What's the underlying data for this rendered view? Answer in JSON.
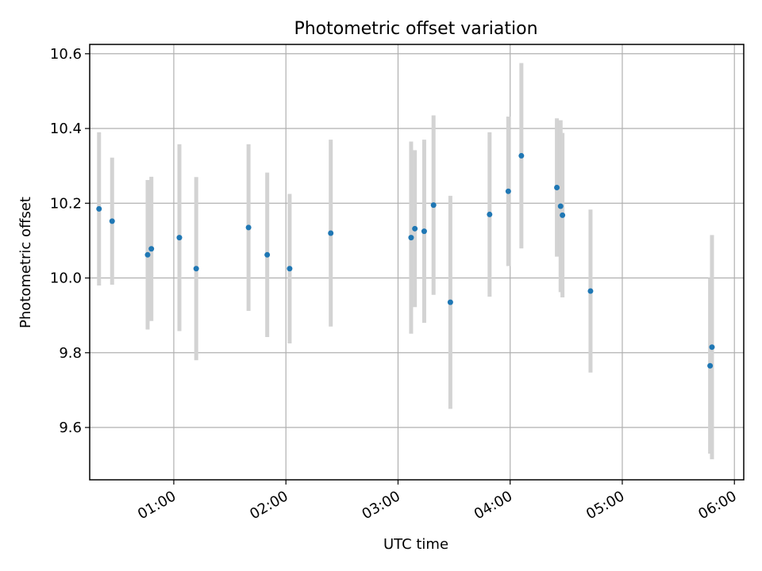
{
  "chart_data": {
    "type": "scatter",
    "title": "Photometric offset variation",
    "xlabel": "UTC time",
    "ylabel": "Photometric offset",
    "x_axis": "time (HH:MM)",
    "xlim": [
      "00:15",
      "06:05"
    ],
    "ylim": [
      9.46,
      10.625
    ],
    "grid": true,
    "x_ticks": [
      "01:00",
      "02:00",
      "03:00",
      "04:00",
      "05:00",
      "06:00"
    ],
    "y_ticks": [
      "9.6",
      "9.8",
      "10.0",
      "10.2",
      "10.4",
      "10.6"
    ],
    "y_tick_values": [
      9.6,
      9.8,
      10.0,
      10.2,
      10.4,
      10.6
    ],
    "marker_color": "#1f77b4",
    "errorbar_color": "#d3d3d3",
    "series": [
      {
        "points": [
          {
            "x": "00:20",
            "y": 10.185,
            "yerr": 0.205
          },
          {
            "x": "00:27",
            "y": 10.152,
            "yerr": 0.17
          },
          {
            "x": "00:46",
            "y": 10.062,
            "yerr": 0.2
          },
          {
            "x": "00:48",
            "y": 10.078,
            "yerr": 0.193
          },
          {
            "x": "01:03",
            "y": 10.108,
            "yerr": 0.25
          },
          {
            "x": "01:12",
            "y": 10.025,
            "yerr": 0.245
          },
          {
            "x": "01:40",
            "y": 10.135,
            "yerr": 0.223
          },
          {
            "x": "01:50",
            "y": 10.062,
            "yerr": 0.22
          },
          {
            "x": "02:02",
            "y": 10.025,
            "yerr": 0.2
          },
          {
            "x": "02:24",
            "y": 10.12,
            "yerr": 0.25
          },
          {
            "x": "03:07",
            "y": 10.108,
            "yerr": 0.257
          },
          {
            "x": "03:09",
            "y": 10.132,
            "yerr": 0.21
          },
          {
            "x": "03:14",
            "y": 10.125,
            "yerr": 0.245
          },
          {
            "x": "03:19",
            "y": 10.195,
            "yerr": 0.24
          },
          {
            "x": "03:28",
            "y": 9.935,
            "yerr": 0.285
          },
          {
            "x": "03:49",
            "y": 10.17,
            "yerr": 0.22
          },
          {
            "x": "03:59",
            "y": 10.232,
            "yerr": 0.2
          },
          {
            "x": "04:06",
            "y": 10.327,
            "yerr": 0.248
          },
          {
            "x": "04:25",
            "y": 10.242,
            "yerr": 0.185
          },
          {
            "x": "04:27",
            "y": 10.192,
            "yerr": 0.23
          },
          {
            "x": "04:28",
            "y": 10.168,
            "yerr": 0.22
          },
          {
            "x": "04:43",
            "y": 9.965,
            "yerr": 0.218
          },
          {
            "x": "05:47",
            "y": 9.765,
            "yerr": 0.235
          },
          {
            "x": "05:48",
            "y": 9.815,
            "yerr": 0.3
          }
        ]
      }
    ]
  }
}
